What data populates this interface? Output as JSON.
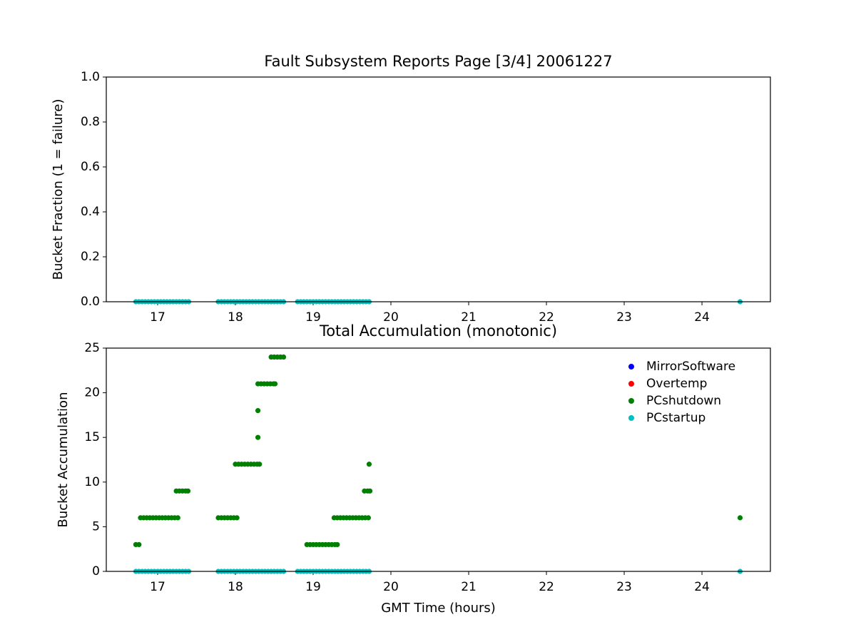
{
  "chart_data": [
    {
      "type": "scatter",
      "title": "Fault Subsystem Reports Page [3/4] 20061227",
      "y_label": "Bucket Fraction (1 = failure)",
      "xlim": [
        16.34,
        24.88
      ],
      "xticks": [
        17,
        18,
        19,
        20,
        21,
        22,
        23,
        24
      ],
      "ylim": [
        0,
        1
      ],
      "yticks": [
        {
          "value": 0,
          "label": "0.0"
        },
        {
          "value": 0.2,
          "label": "0.2"
        },
        {
          "value": 0.4,
          "label": "0.4"
        },
        {
          "value": 0.6,
          "label": "0.6"
        },
        {
          "value": 0.8,
          "label": "0.8"
        },
        {
          "value": 1,
          "label": "1.0"
        }
      ],
      "series": [
        {
          "color": "#00bfbf",
          "x": [
            16.72,
            16.76,
            16.8,
            16.84,
            16.88,
            16.92,
            16.96,
            17.0,
            17.04,
            17.08,
            17.12,
            17.16,
            17.2,
            17.24,
            17.28,
            17.32,
            17.36,
            17.4,
            17.78,
            17.82,
            17.86,
            17.9,
            17.94,
            17.98,
            18.02,
            18.06,
            18.1,
            18.14,
            18.18,
            18.22,
            18.26,
            18.3,
            18.34,
            18.38,
            18.42,
            18.46,
            18.5,
            18.54,
            18.58,
            18.62,
            18.8,
            18.84,
            18.88,
            18.92,
            18.96,
            19.0,
            19.04,
            19.08,
            19.12,
            19.16,
            19.2,
            19.24,
            19.28,
            19.32,
            19.36,
            19.4,
            19.44,
            19.48,
            19.52,
            19.56,
            19.6,
            19.64,
            19.68,
            19.72,
            24.49
          ],
          "values": [
            0,
            0,
            0,
            0,
            0,
            0,
            0,
            0,
            0,
            0,
            0,
            0,
            0,
            0,
            0,
            0,
            0,
            0,
            0,
            0,
            0,
            0,
            0,
            0,
            0,
            0,
            0,
            0,
            0,
            0,
            0,
            0,
            0,
            0,
            0,
            0,
            0,
            0,
            0,
            0,
            0,
            0,
            0,
            0,
            0,
            0,
            0,
            0,
            0,
            0,
            0,
            0,
            0,
            0,
            0,
            0,
            0,
            0,
            0,
            0,
            0,
            0,
            0,
            0,
            0
          ]
        }
      ]
    },
    {
      "type": "scatter",
      "title": "Total Accumulation (monotonic)",
      "x_label": "GMT Time (hours)",
      "y_label": "Bucket Accumulation",
      "xlim": [
        16.34,
        24.88
      ],
      "xticks": [
        17,
        18,
        19,
        20,
        21,
        22,
        23,
        24
      ],
      "ylim": [
        0,
        25
      ],
      "yticks": [
        0,
        5,
        10,
        15,
        20,
        25
      ],
      "legend": "upper right",
      "series": [
        {
          "name": "MirrorSoftware",
          "color": "#0000ff",
          "x": [],
          "values": []
        },
        {
          "name": "Overtemp",
          "color": "#ff0000",
          "x": [],
          "values": []
        },
        {
          "name": "PCshutdown",
          "color": "#008000",
          "x": [
            16.72,
            16.76,
            16.78,
            16.82,
            16.86,
            16.9,
            16.94,
            16.98,
            17.02,
            17.06,
            17.1,
            17.14,
            17.18,
            17.22,
            17.26,
            17.24,
            17.28,
            17.32,
            17.36,
            17.39,
            17.78,
            17.82,
            17.86,
            17.9,
            17.94,
            17.98,
            18.02,
            18.0,
            18.04,
            18.08,
            18.12,
            18.16,
            18.2,
            18.24,
            18.28,
            18.31,
            18.29,
            18.29,
            18.29,
            18.33,
            18.37,
            18.41,
            18.45,
            18.49,
            18.51,
            18.46,
            18.5,
            18.54,
            18.58,
            18.62,
            18.92,
            18.96,
            19.0,
            19.04,
            19.08,
            19.12,
            19.16,
            19.2,
            19.24,
            19.28,
            19.31,
            19.27,
            19.31,
            19.35,
            19.39,
            19.43,
            19.47,
            19.51,
            19.55,
            19.59,
            19.63,
            19.67,
            19.71,
            19.66,
            19.7,
            19.73,
            19.72,
            24.49
          ],
          "values": [
            3,
            3,
            6,
            6,
            6,
            6,
            6,
            6,
            6,
            6,
            6,
            6,
            6,
            6,
            6,
            9,
            9,
            9,
            9,
            9,
            6,
            6,
            6,
            6,
            6,
            6,
            6,
            12,
            12,
            12,
            12,
            12,
            12,
            12,
            12,
            12,
            15,
            18,
            21,
            21,
            21,
            21,
            21,
            21,
            21,
            24,
            24,
            24,
            24,
            24,
            3,
            3,
            3,
            3,
            3,
            3,
            3,
            3,
            3,
            3,
            3,
            6,
            6,
            6,
            6,
            6,
            6,
            6,
            6,
            6,
            6,
            6,
            6,
            9,
            9,
            9,
            12,
            6
          ]
        },
        {
          "name": "PCstartup",
          "color": "#00bfbf",
          "x": [
            16.72,
            16.76,
            16.8,
            16.84,
            16.88,
            16.92,
            16.96,
            17.0,
            17.04,
            17.08,
            17.12,
            17.16,
            17.2,
            17.24,
            17.28,
            17.32,
            17.36,
            17.4,
            17.78,
            17.82,
            17.86,
            17.9,
            17.94,
            17.98,
            18.02,
            18.06,
            18.1,
            18.14,
            18.18,
            18.22,
            18.26,
            18.3,
            18.34,
            18.38,
            18.42,
            18.46,
            18.5,
            18.54,
            18.58,
            18.62,
            18.8,
            18.84,
            18.88,
            18.92,
            18.96,
            19.0,
            19.04,
            19.08,
            19.12,
            19.16,
            19.2,
            19.24,
            19.28,
            19.32,
            19.36,
            19.4,
            19.44,
            19.48,
            19.52,
            19.56,
            19.6,
            19.64,
            19.68,
            19.72,
            24.49
          ],
          "values": [
            0,
            0,
            0,
            0,
            0,
            0,
            0,
            0,
            0,
            0,
            0,
            0,
            0,
            0,
            0,
            0,
            0,
            0,
            0,
            0,
            0,
            0,
            0,
            0,
            0,
            0,
            0,
            0,
            0,
            0,
            0,
            0,
            0,
            0,
            0,
            0,
            0,
            0,
            0,
            0,
            0,
            0,
            0,
            0,
            0,
            0,
            0,
            0,
            0,
            0,
            0,
            0,
            0,
            0,
            0,
            0,
            0,
            0,
            0,
            0,
            0,
            0,
            0,
            0,
            0
          ]
        }
      ]
    }
  ]
}
